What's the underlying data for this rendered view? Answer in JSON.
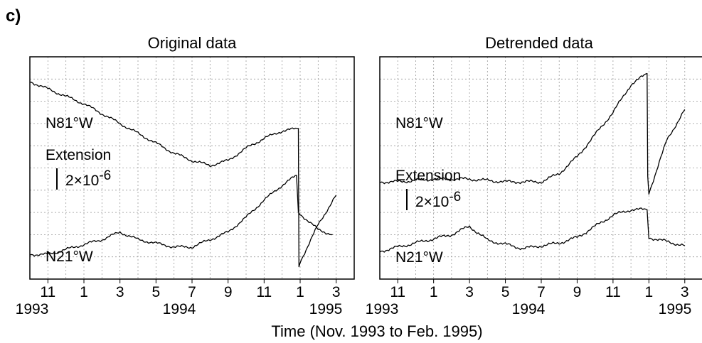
{
  "panel_label": "c)",
  "x_axis_label": "Time (Nov. 1993 to Feb. 1995)",
  "chart_data": [
    {
      "type": "line",
      "title": "Original data",
      "x_tick_labels": [
        "11",
        "1",
        "3",
        "5",
        "7",
        "9",
        "11",
        "1",
        "3"
      ],
      "year_labels": [
        "1993",
        "1994",
        "1995"
      ],
      "x_range_months": [
        "1993-10",
        "1995-04"
      ],
      "grid": true,
      "scale_label": {
        "name": "Extension",
        "value": "2×10",
        "exponent": "-6"
      },
      "series": [
        {
          "name": "N81°W",
          "x": [
            "1993-10",
            "1993-11",
            "1994-01",
            "1994-02",
            "1994-03",
            "1994-04",
            "1994-05",
            "1994-06",
            "1994-07",
            "1994-08",
            "1994-09",
            "1994-10",
            "1994-11",
            "1994-12",
            "1994-12-28",
            "1994-12-29",
            "1995-01-01",
            "1995-02",
            "1995-03"
          ],
          "y": [
            7.0,
            6.7,
            6.1,
            5.7,
            5.3,
            4.9,
            4.5,
            4.1,
            3.8,
            3.6,
            3.8,
            4.3,
            4.7,
            5.0,
            5.1,
            -0.5,
            -0.3,
            1.2,
            2.4
          ]
        },
        {
          "name": "N21°W",
          "x": [
            "1993-10",
            "1993-11",
            "1993-12",
            "1994-02",
            "1994-03",
            "1994-04",
            "1994-06",
            "1994-07",
            "1994-08",
            "1994-09",
            "1994-10",
            "1994-11",
            "1994-12",
            "1994-12-25",
            "1994-12-28",
            "1995-02",
            "1995-02-25"
          ],
          "y": [
            0.0,
            0.0,
            0.2,
            0.6,
            0.9,
            0.6,
            0.3,
            0.3,
            0.6,
            0.9,
            1.5,
            2.2,
            2.8,
            3.2,
            1.7,
            1.0,
            0.8
          ]
        }
      ]
    },
    {
      "type": "line",
      "title": "Detrended data",
      "x_tick_labels": [
        "11",
        "1",
        "3",
        "5",
        "7",
        "9",
        "11",
        "1",
        "3"
      ],
      "year_labels": [
        "1993",
        "1994",
        "1995"
      ],
      "x_range_months": [
        "1993-10",
        "1995-04"
      ],
      "grid": true,
      "scale_label": {
        "name": "Extension",
        "value": "2×10",
        "exponent": "-6"
      },
      "series": [
        {
          "name": "N81°W",
          "x": [
            "1993-10",
            "1993-11",
            "1994-01",
            "1994-03",
            "1994-05",
            "1994-07",
            "1994-08",
            "1994-09",
            "1994-10",
            "1994-11",
            "1994-12",
            "1994-12-28",
            "1994-12-29",
            "1995-01-01",
            "1995-02",
            "1995-03"
          ],
          "y": [
            2.5,
            2.5,
            2.6,
            2.6,
            2.5,
            2.5,
            2.8,
            3.4,
            4.2,
            5.0,
            6.0,
            6.4,
            2.7,
            2.1,
            4.0,
            5.1
          ]
        },
        {
          "name": "N21°W",
          "x": [
            "1993-10",
            "1993-12",
            "1994-02",
            "1994-03",
            "1994-04",
            "1994-06",
            "1994-07",
            "1994-08",
            "1994-09",
            "1994-10",
            "1994-11",
            "1994-12",
            "1994-12-28",
            "1995-01",
            "1995-03"
          ],
          "y": [
            0.0,
            0.3,
            0.6,
            0.9,
            0.4,
            0.1,
            0.2,
            0.3,
            0.5,
            0.9,
            1.3,
            1.5,
            1.5,
            0.5,
            0.2
          ]
        }
      ]
    }
  ]
}
